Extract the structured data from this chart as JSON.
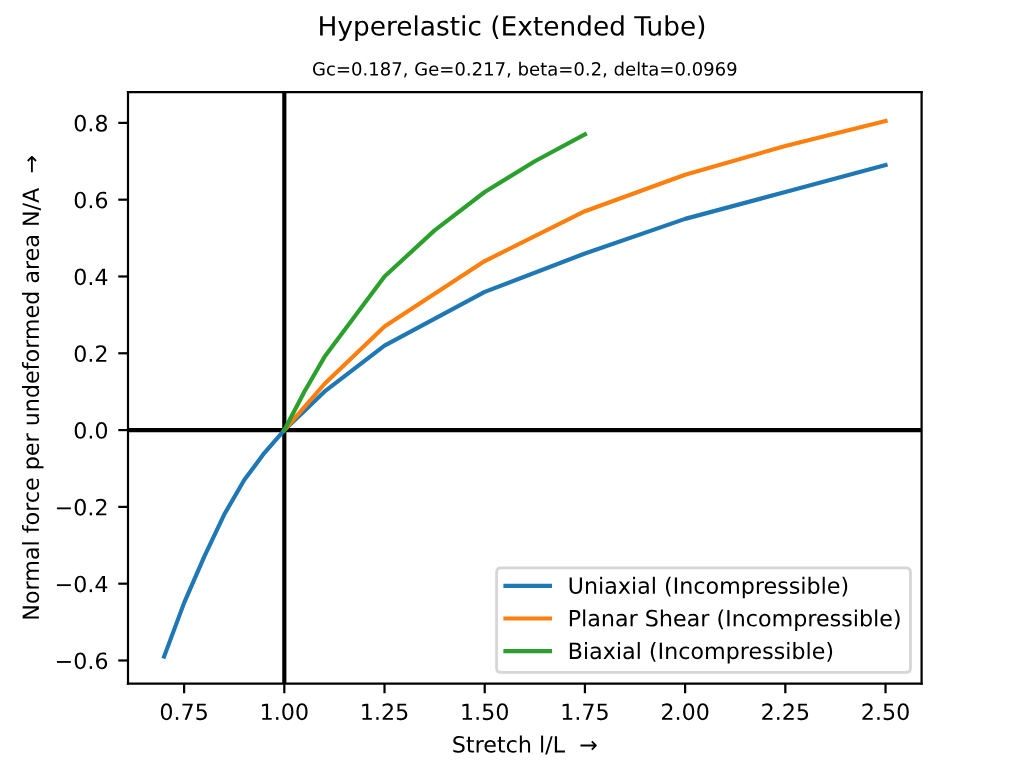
{
  "chart_data": {
    "type": "line",
    "title": "Hyperelastic (Extended Tube)",
    "subtitle": "Gc=0.187, Ge=0.217, beta=0.2, delta=0.0969",
    "xlabel": "Stretch l/L  →",
    "ylabel": "Normal force per undeformed area N/A  →",
    "series": [
      {
        "name": "Uniaxial (Incompressible)",
        "color": "#1f77b4",
        "x": [
          0.7,
          0.75,
          0.8,
          0.85,
          0.9,
          0.95,
          1.0,
          1.05,
          1.1,
          1.25,
          1.5,
          1.75,
          2.0,
          2.25,
          2.5
        ],
        "values": [
          -0.59,
          -0.45,
          -0.33,
          -0.22,
          -0.13,
          -0.06,
          0,
          0.05,
          0.1,
          0.22,
          0.36,
          0.46,
          0.55,
          0.62,
          0.69
        ]
      },
      {
        "name": "Planar Shear (Incompressible)",
        "color": "#ff7f0e",
        "x": [
          1.0,
          1.05,
          1.1,
          1.25,
          1.5,
          1.75,
          2.0,
          2.25,
          2.5
        ],
        "values": [
          0,
          0.06,
          0.12,
          0.27,
          0.44,
          0.57,
          0.665,
          0.74,
          0.805
        ]
      },
      {
        "name": "Biaxial (Incompressible)",
        "color": "#2ca02c",
        "x": [
          1.0,
          1.05,
          1.1,
          1.25,
          1.375,
          1.5,
          1.625,
          1.75
        ],
        "values": [
          0,
          0.1,
          0.19,
          0.4,
          0.52,
          0.62,
          0.7,
          0.77
        ]
      }
    ],
    "xlim": [
      0.61,
      2.59
    ],
    "ylim": [
      -0.66,
      0.88
    ],
    "xticks": [
      {
        "value": 0.75,
        "label": "0.75"
      },
      {
        "value": 1.0,
        "label": "1.00"
      },
      {
        "value": 1.25,
        "label": "1.25"
      },
      {
        "value": 1.5,
        "label": "1.50"
      },
      {
        "value": 1.75,
        "label": "1.75"
      },
      {
        "value": 2.0,
        "label": "2.00"
      },
      {
        "value": 2.25,
        "label": "2.25"
      },
      {
        "value": 2.5,
        "label": "2.50"
      }
    ],
    "yticks": [
      {
        "value": -0.6,
        "label": "−0.6"
      },
      {
        "value": -0.4,
        "label": "−0.4"
      },
      {
        "value": -0.2,
        "label": "−0.2"
      },
      {
        "value": 0,
        "label": "0.0"
      },
      {
        "value": 0.2,
        "label": "0.2"
      },
      {
        "value": 0.4,
        "label": "0.4"
      },
      {
        "value": 0.6,
        "label": "0.6"
      },
      {
        "value": 0.8,
        "label": "0.8"
      }
    ],
    "ref_lines": [
      {
        "axis": "x",
        "value": 1.0,
        "color": "#000000"
      },
      {
        "axis": "y",
        "value": 0,
        "color": "#000000"
      }
    ],
    "legend": "bottom right",
    "grid": false,
    "marker": "none",
    "line_style": "solid"
  }
}
